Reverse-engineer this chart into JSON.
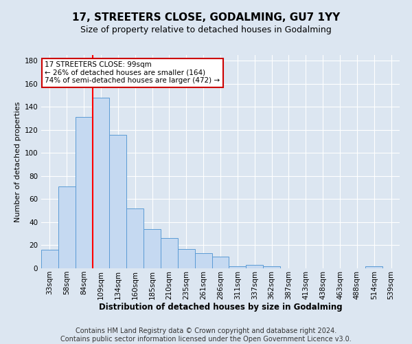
{
  "title": "17, STREETERS CLOSE, GODALMING, GU7 1YY",
  "subtitle": "Size of property relative to detached houses in Godalming",
  "xlabel": "Distribution of detached houses by size in Godalming",
  "ylabel": "Number of detached properties",
  "categories": [
    "33sqm",
    "58sqm",
    "84sqm",
    "109sqm",
    "134sqm",
    "160sqm",
    "185sqm",
    "210sqm",
    "235sqm",
    "261sqm",
    "286sqm",
    "311sqm",
    "337sqm",
    "362sqm",
    "387sqm",
    "413sqm",
    "438sqm",
    "463sqm",
    "488sqm",
    "514sqm",
    "539sqm"
  ],
  "values": [
    16,
    71,
    131,
    148,
    116,
    52,
    34,
    26,
    17,
    13,
    10,
    2,
    3,
    2,
    0,
    0,
    0,
    0,
    0,
    2,
    0
  ],
  "bar_color": "#c5d9f1",
  "bar_edge_color": "#5b9bd5",
  "background_color": "#dce6f1",
  "plot_bg_color": "#dce6f1",
  "grid_color": "#ffffff",
  "ylim": [
    0,
    185
  ],
  "yticks": [
    0,
    20,
    40,
    60,
    80,
    100,
    120,
    140,
    160,
    180
  ],
  "vline_x_idx": 2.5,
  "annotation_text": "17 STREETERS CLOSE: 99sqm\n← 26% of detached houses are smaller (164)\n74% of semi-detached houses are larger (472) →",
  "annotation_box_color": "#ffffff",
  "annotation_box_edge": "#cc0000",
  "footer_line1": "Contains HM Land Registry data © Crown copyright and database right 2024.",
  "footer_line2": "Contains public sector information licensed under the Open Government Licence v3.0.",
  "title_fontsize": 11,
  "subtitle_fontsize": 9,
  "xlabel_fontsize": 8.5,
  "ylabel_fontsize": 8,
  "tick_fontsize": 7.5,
  "footer_fontsize": 7,
  "annotation_fontsize": 7.5
}
